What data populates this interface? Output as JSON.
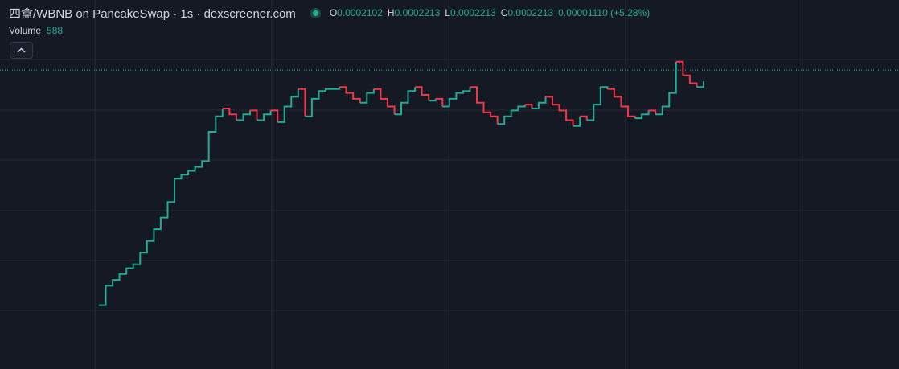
{
  "header": {
    "title": "四盒/WBNB on PancakeSwap · 1s · dexscreener.com",
    "ohlc": {
      "o_label": "O",
      "o_value": "0.0002102",
      "h_label": "H",
      "h_value": "0.0002213",
      "l_label": "L",
      "l_value": "0.0002213",
      "c_label": "C",
      "c_value": "0.0002213",
      "change": "0.00001110 (+5.28%)"
    },
    "volume_label": "Volume",
    "volume_value": "588"
  },
  "controls": {
    "collapse_icon": "chevron-up-icon"
  },
  "colors": {
    "background": "#151924",
    "grid": "#252934",
    "up": "#22ab94",
    "down": "#f23645",
    "price_line": "#22ab94",
    "text": "#d1d4dc"
  },
  "chart_data": {
    "type": "candlestick",
    "grid": true,
    "last_price_line": true,
    "y_range": [
      0.0001,
      0.000228
    ],
    "series": [
      {
        "type": "line",
        "segments": [
          {
            "color": "up",
            "points": [
              [
                0,
                0.000101
              ],
              [
                2,
                0.000111
              ],
              [
                4,
                0.000114
              ],
              [
                6,
                0.000117
              ],
              [
                8,
                0.00012
              ],
              [
                10,
                0.000122
              ],
              [
                12,
                0.000128
              ],
              [
                14,
                0.000134
              ],
              [
                16,
                0.00014
              ],
              [
                18,
                0.000146
              ],
              [
                20,
                0.000154
              ],
              [
                22,
                0.000166
              ],
              [
                24,
                0.000168
              ],
              [
                26,
                0.00017
              ],
              [
                28,
                0.000172
              ],
              [
                30,
                0.000175
              ],
              [
                32,
                0.00019
              ],
              [
                34,
                0.000198
              ],
              [
                36,
                0.000202
              ]
            ]
          },
          {
            "color": "down",
            "points": [
              [
                36,
                0.000202
              ],
              [
                38,
                0.000199
              ],
              [
                40,
                0.000196
              ]
            ]
          },
          {
            "color": "up",
            "points": [
              [
                40,
                0.000196
              ],
              [
                42,
                0.000199
              ],
              [
                44,
                0.000201
              ]
            ]
          },
          {
            "color": "down",
            "points": [
              [
                44,
                0.000201
              ],
              [
                46,
                0.000196
              ]
            ]
          },
          {
            "color": "up",
            "points": [
              [
                46,
                0.000196
              ],
              [
                48,
                0.000199
              ],
              [
                50,
                0.000201
              ]
            ]
          },
          {
            "color": "down",
            "points": [
              [
                50,
                0.000201
              ],
              [
                52,
                0.000195
              ]
            ]
          },
          {
            "color": "up",
            "points": [
              [
                52,
                0.000195
              ],
              [
                54,
                0.000203
              ],
              [
                56,
                0.000208
              ],
              [
                58,
                0.000212
              ]
            ]
          },
          {
            "color": "down",
            "points": [
              [
                58,
                0.000212
              ],
              [
                60,
                0.000198
              ]
            ]
          },
          {
            "color": "up",
            "points": [
              [
                60,
                0.000198
              ],
              [
                62,
                0.000207
              ],
              [
                64,
                0.000211
              ],
              [
                66,
                0.000212
              ],
              [
                68,
                0.000212
              ],
              [
                70,
                0.000213
              ]
            ]
          },
          {
            "color": "down",
            "points": [
              [
                70,
                0.000213
              ],
              [
                72,
                0.00021
              ],
              [
                74,
                0.000207
              ],
              [
                76,
                0.000205
              ]
            ]
          },
          {
            "color": "up",
            "points": [
              [
                76,
                0.000205
              ],
              [
                78,
                0.00021
              ],
              [
                80,
                0.000212
              ]
            ]
          },
          {
            "color": "down",
            "points": [
              [
                80,
                0.000212
              ],
              [
                82,
                0.000207
              ],
              [
                84,
                0.000203
              ],
              [
                86,
                0.000199
              ]
            ]
          },
          {
            "color": "up",
            "points": [
              [
                86,
                0.000199
              ],
              [
                88,
                0.000205
              ],
              [
                90,
                0.000211
              ],
              [
                92,
                0.000213
              ]
            ]
          },
          {
            "color": "down",
            "points": [
              [
                92,
                0.000213
              ],
              [
                94,
                0.000209
              ],
              [
                96,
                0.000206
              ]
            ]
          },
          {
            "color": "up",
            "points": [
              [
                96,
                0.000206
              ],
              [
                98,
                0.000207
              ]
            ]
          },
          {
            "color": "down",
            "points": [
              [
                98,
                0.000207
              ],
              [
                100,
                0.000203
              ]
            ]
          },
          {
            "color": "up",
            "points": [
              [
                100,
                0.000203
              ],
              [
                102,
                0.000207
              ],
              [
                104,
                0.00021
              ],
              [
                106,
                0.000211
              ],
              [
                108,
                0.000213
              ]
            ]
          },
          {
            "color": "down",
            "points": [
              [
                108,
                0.000213
              ],
              [
                110,
                0.000205
              ],
              [
                112,
                0.0002
              ],
              [
                114,
                0.000198
              ],
              [
                116,
                0.000194
              ]
            ]
          },
          {
            "color": "up",
            "points": [
              [
                116,
                0.000194
              ],
              [
                118,
                0.000198
              ],
              [
                120,
                0.000201
              ],
              [
                122,
                0.000203
              ],
              [
                124,
                0.000204
              ]
            ]
          },
          {
            "color": "down",
            "points": [
              [
                124,
                0.000204
              ],
              [
                126,
                0.000202
              ]
            ]
          },
          {
            "color": "up",
            "points": [
              [
                126,
                0.000202
              ],
              [
                128,
                0.000205
              ],
              [
                130,
                0.000208
              ]
            ]
          },
          {
            "color": "down",
            "points": [
              [
                130,
                0.000208
              ],
              [
                132,
                0.000204
              ],
              [
                134,
                0.000201
              ],
              [
                136,
                0.000196
              ],
              [
                138,
                0.000193
              ]
            ]
          },
          {
            "color": "up",
            "points": [
              [
                138,
                0.000193
              ],
              [
                140,
                0.000198
              ]
            ]
          },
          {
            "color": "down",
            "points": [
              [
                140,
                0.000198
              ],
              [
                142,
                0.000196
              ]
            ]
          },
          {
            "color": "up",
            "points": [
              [
                142,
                0.000196
              ],
              [
                144,
                0.000204
              ],
              [
                146,
                0.000213
              ],
              [
                148,
                0.000212
              ]
            ]
          },
          {
            "color": "down",
            "points": [
              [
                148,
                0.000212
              ],
              [
                150,
                0.000208
              ],
              [
                152,
                0.000203
              ],
              [
                154,
                0.000198
              ],
              [
                156,
                0.000197
              ]
            ]
          },
          {
            "color": "up",
            "points": [
              [
                156,
                0.000197
              ],
              [
                158,
                0.000199
              ],
              [
                160,
                0.000201
              ]
            ]
          },
          {
            "color": "down",
            "points": [
              [
                160,
                0.000201
              ],
              [
                162,
                0.000199
              ]
            ]
          },
          {
            "color": "up",
            "points": [
              [
                162,
                0.000199
              ],
              [
                164,
                0.000203
              ],
              [
                166,
                0.00021
              ],
              [
                168,
                0.000226
              ]
            ]
          },
          {
            "color": "down",
            "points": [
              [
                168,
                0.000226
              ],
              [
                170,
                0.000219
              ],
              [
                172,
                0.000215
              ],
              [
                174,
                0.000213
              ]
            ]
          },
          {
            "color": "up",
            "points": [
              [
                174,
                0.000213
              ],
              [
                176,
                0.000216
              ]
            ]
          }
        ]
      }
    ]
  }
}
